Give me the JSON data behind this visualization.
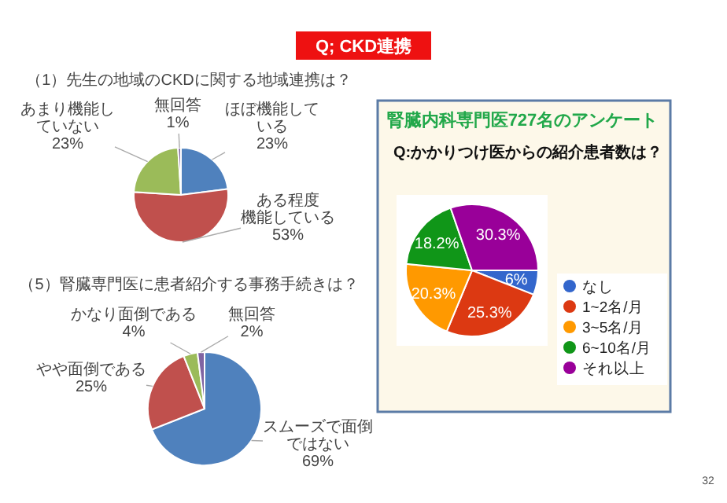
{
  "chart_data": [
    {
      "type": "pie",
      "title": "（1）先生の地域のCKDに関する地域連携は？",
      "categories": [
        "ほぼ機能している",
        "ある程度機能している",
        "あまり機能していない",
        "無回答"
      ],
      "values": [
        23,
        53,
        23,
        1
      ],
      "value_labels": [
        "23%",
        "53%",
        "23%",
        "1%"
      ],
      "colors": [
        "#4f81bd",
        "#c0504d",
        "#9bbb59",
        "#8064a2"
      ],
      "annotations": [
        "Q; CKD連携",
        "32"
      ]
    },
    {
      "type": "pie",
      "title": "（5）腎臓専門医に患者紹介する事務手続きは？",
      "categories": [
        "スムーズで面倒ではない",
        "やや面倒である",
        "かなり面倒である",
        "無回答"
      ],
      "values": [
        69,
        25,
        4,
        2
      ],
      "value_labels": [
        "69%",
        "25%",
        "4%",
        "2%"
      ],
      "colors": [
        "#4f81bd",
        "#c0504d",
        "#9bbb59",
        "#8064a2"
      ]
    },
    {
      "type": "pie",
      "title": "腎臓内科専門医727名のアンケート",
      "subtitle": "Q:かかりつけ医からの紹介患者数は？",
      "categories": [
        "なし",
        "1~2名/月",
        "3~5名/月",
        "6~10名/月",
        "それ以上"
      ],
      "values": [
        6,
        25.3,
        20.3,
        18.2,
        30.3
      ],
      "value_labels": [
        "6%",
        "25.3%",
        "20.3%",
        "18.2%",
        "30.3%"
      ],
      "colors": [
        "#3366cc",
        "#dc3912",
        "#ff9900",
        "#109618",
        "#990099"
      ],
      "legend": "right"
    }
  ]
}
